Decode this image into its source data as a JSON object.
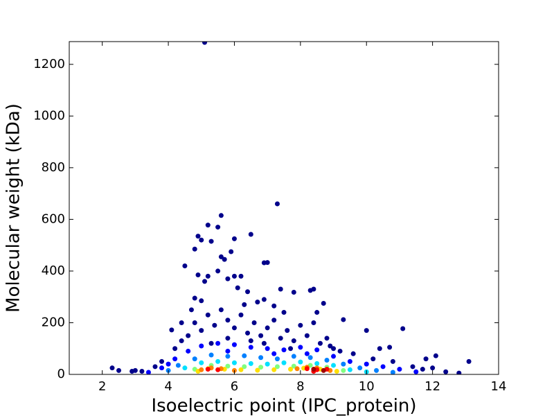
{
  "chart_data": {
    "type": "scatter",
    "x_label": "Isoelectric point (IPC_protein)",
    "y_label": "Molecular weight (kDa)",
    "xlim": [
      1,
      14
    ],
    "ylim": [
      0,
      1288
    ],
    "xticks": [
      2,
      4,
      6,
      8,
      10,
      12,
      14
    ],
    "yticks": [
      0,
      200,
      400,
      600,
      800,
      1000,
      1200
    ],
    "series": [
      {
        "color": "#00008b",
        "x": [
          5.1,
          7.3,
          5.6,
          5.2,
          5.5,
          4.9,
          5.0,
          5.3,
          6.0,
          6.5,
          5.9,
          5.6,
          5.7,
          4.8,
          5.5,
          4.5,
          6.9,
          7.0,
          4.9,
          5.2,
          5.8,
          6.0,
          6.2,
          5.1,
          6.1,
          6.4,
          7.4,
          8.3,
          8.4,
          7.8,
          4.8,
          5.0,
          6.9,
          6.7,
          7.2,
          8.7,
          8.5,
          9.3,
          10.0,
          11.1,
          4.4,
          4.1,
          12.1,
          13.1,
          12.8,
          2.3,
          2.5,
          2.9,
          10.7,
          10.4,
          11.8,
          4.6,
          4.8,
          5.0,
          5.2,
          5.4,
          5.6,
          5.8,
          6.0,
          6.2,
          6.4,
          6.6,
          6.8,
          7.0,
          7.2,
          7.4,
          7.6,
          7.8,
          8.0,
          8.2,
          8.4,
          8.6,
          8.8,
          9.0,
          9.2,
          9.6,
          10.2,
          10.8,
          11.4,
          12.0,
          3.6,
          3.8,
          4.2,
          4.4,
          5.3,
          6.5,
          7.7,
          8.9,
          3.2,
          3.0,
          12.4,
          11.7,
          5.8,
          6.9,
          4.7,
          6.3,
          7.5
        ],
        "values": [
          1285,
          660,
          615,
          578,
          570,
          535,
          520,
          515,
          525,
          542,
          475,
          455,
          445,
          485,
          400,
          420,
          432,
          433,
          385,
          380,
          370,
          380,
          380,
          360,
          335,
          320,
          330,
          325,
          330,
          318,
          295,
          285,
          290,
          280,
          265,
          275,
          240,
          212,
          170,
          177,
          200,
          172,
          72,
          50,
          5,
          25,
          15,
          12,
          105,
          100,
          60,
          150,
          200,
          170,
          230,
          190,
          250,
          210,
          180,
          230,
          160,
          200,
          150,
          180,
          210,
          140,
          170,
          130,
          190,
          150,
          200,
          120,
          140,
          100,
          90,
          80,
          60,
          50,
          30,
          25,
          30,
          50,
          100,
          130,
          120,
          130,
          100,
          110,
          12,
          15,
          10,
          20,
          140,
          120,
          250,
          270,
          240
        ]
      },
      {
        "color": "#0000ff",
        "x": [
          4.2,
          4.6,
          5.0,
          5.5,
          6.0,
          6.5,
          7.0,
          7.5,
          8.0,
          8.5,
          9.0,
          9.5,
          10.0,
          10.5,
          11.0,
          3.8,
          4.0,
          5.8,
          7.2,
          8.2,
          11.5,
          3.4
        ],
        "values": [
          60,
          90,
          110,
          120,
          115,
          105,
          100,
          95,
          105,
          95,
          70,
          50,
          40,
          30,
          20,
          25,
          40,
          90,
          80,
          80,
          10,
          8
        ]
      },
      {
        "color": "#0080ff",
        "x": [
          4.3,
          4.8,
          5.3,
          5.8,
          6.3,
          6.8,
          7.3,
          7.8,
          8.3,
          8.8,
          9.3,
          9.8,
          10.3,
          10.8,
          4.0
        ],
        "values": [
          35,
          60,
          75,
          70,
          72,
          65,
          60,
          70,
          65,
          55,
          40,
          25,
          15,
          8,
          15
        ]
      },
      {
        "color": "#00e0ff",
        "x": [
          4.5,
          5.0,
          5.5,
          6.0,
          6.5,
          7.0,
          7.5,
          8.0,
          8.5,
          9.0,
          9.5,
          10.0
        ],
        "values": [
          25,
          45,
          50,
          45,
          42,
          40,
          45,
          48,
          42,
          35,
          18,
          10
        ]
      },
      {
        "color": "#80ff80",
        "x": [
          4.8,
          5.3,
          5.8,
          6.3,
          6.8,
          7.3,
          7.8,
          8.3,
          8.8,
          9.3
        ],
        "values": [
          20,
          35,
          32,
          30,
          28,
          30,
          32,
          35,
          28,
          15
        ]
      },
      {
        "color": "#ffe000",
        "x": [
          4.9,
          5.2,
          5.7,
          6.2,
          6.7,
          7.2,
          7.7,
          8.1,
          8.6,
          9.1
        ],
        "values": [
          12,
          22,
          20,
          18,
          16,
          18,
          20,
          24,
          20,
          12
        ]
      },
      {
        "color": "#ff8000",
        "x": [
          5.0,
          5.3,
          5.6,
          6.0,
          7.9,
          8.2,
          8.5,
          8.9
        ],
        "values": [
          18,
          25,
          22,
          15,
          22,
          28,
          25,
          15
        ]
      },
      {
        "color": "#ff0000",
        "x": [
          5.2,
          5.5,
          8.2,
          8.5,
          8.8,
          8.4
        ],
        "values": [
          20,
          18,
          22,
          18,
          20,
          12
        ]
      },
      {
        "color": "#a00000",
        "x": [
          8.4,
          8.7
        ],
        "values": [
          20,
          15
        ]
      }
    ]
  }
}
